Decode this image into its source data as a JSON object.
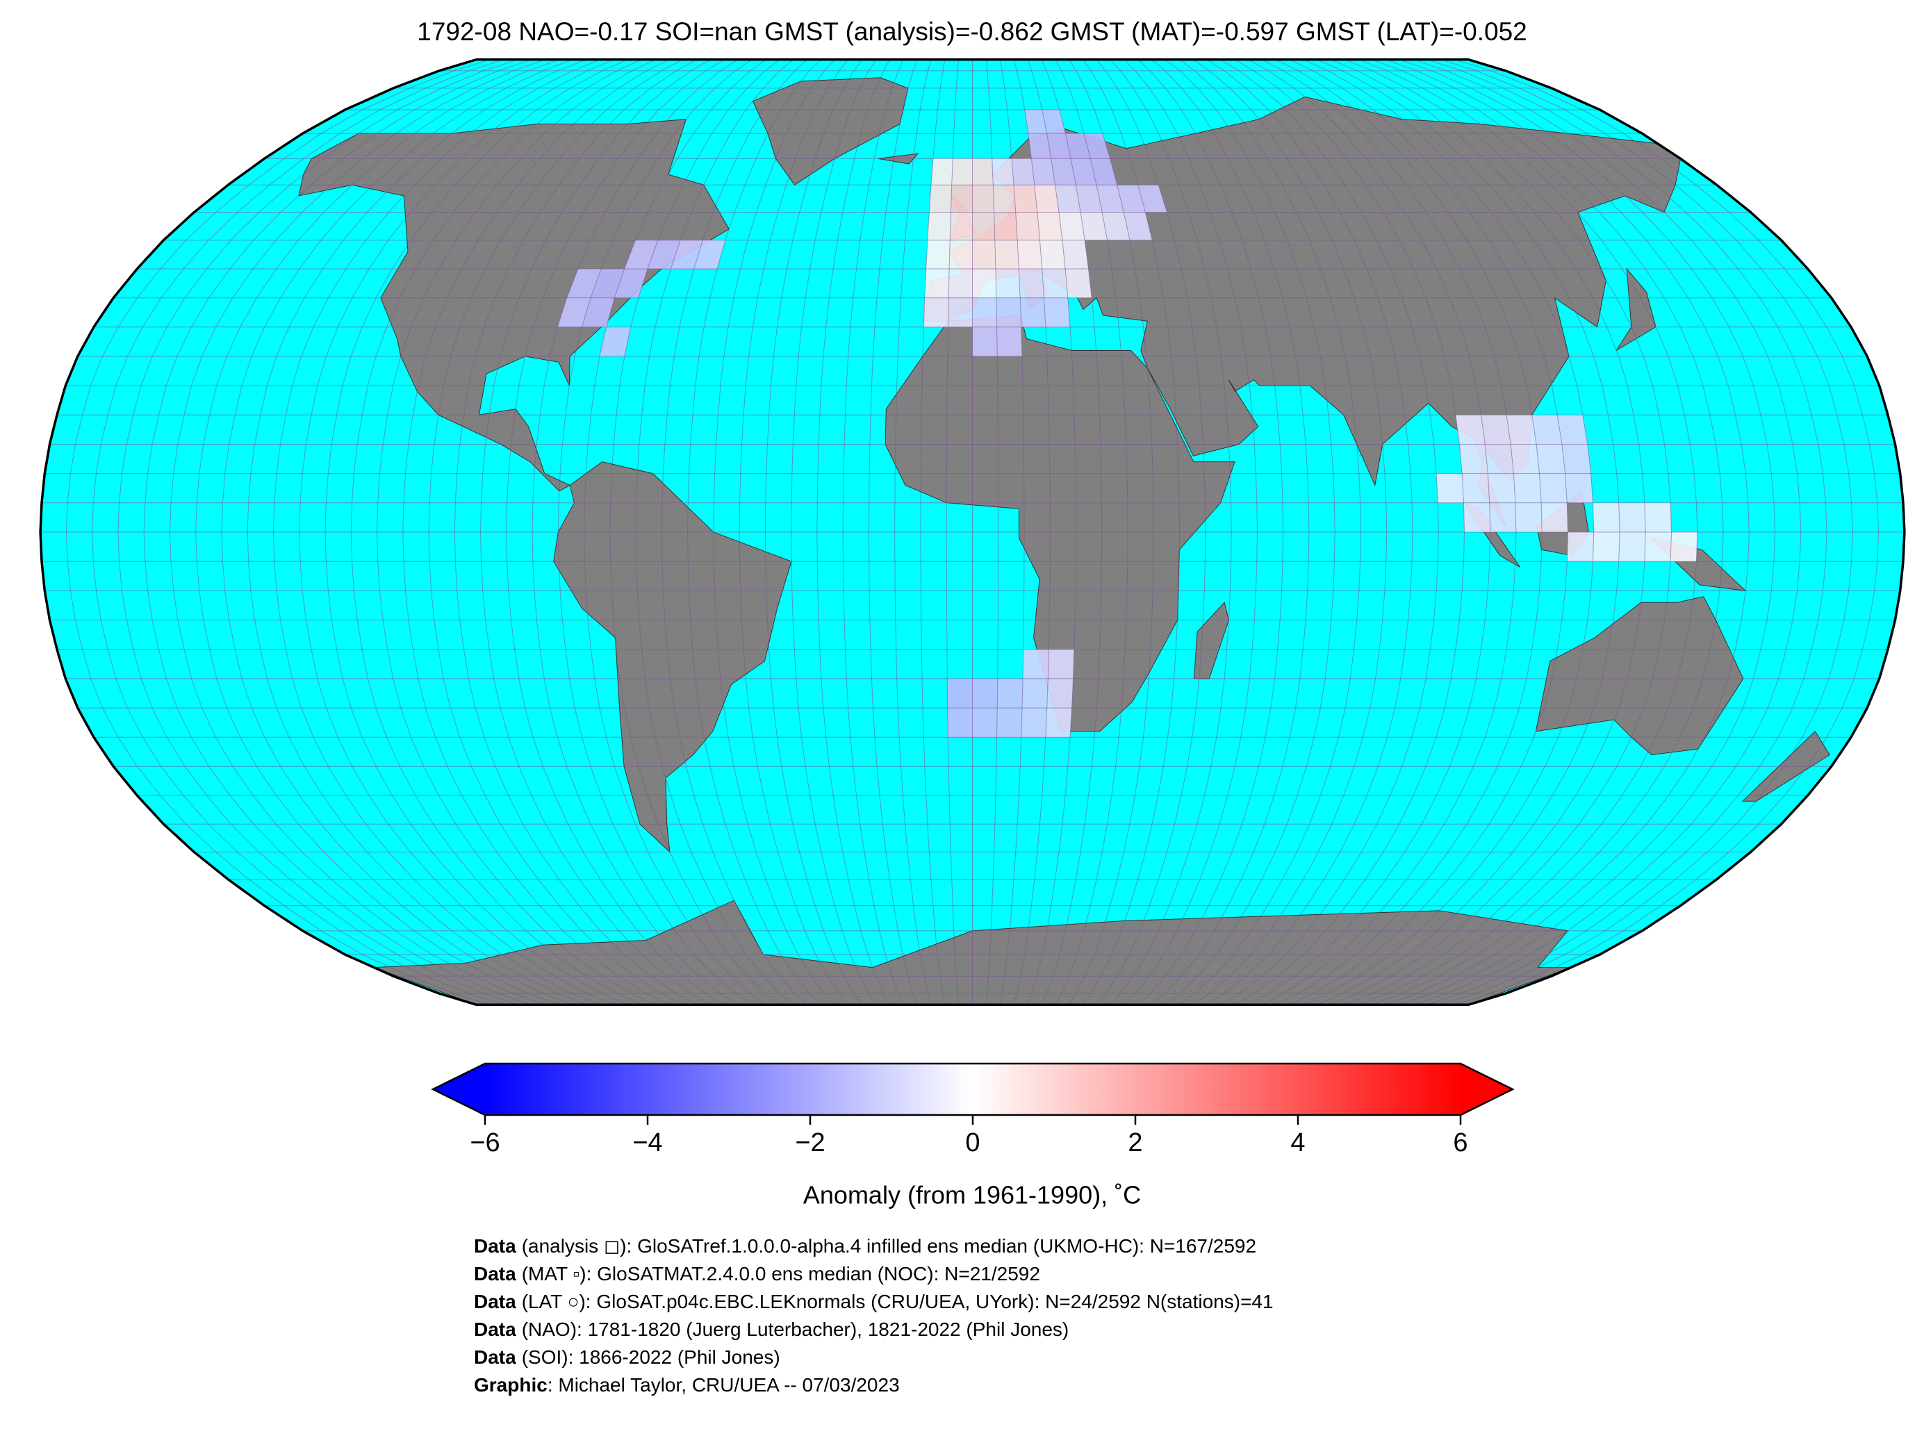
{
  "map": {
    "title": "1792-08 NAO=-0.17 SOI=nan GMST (analysis)=-0.862 GMST (MAT)=-0.597 GMST (LAT)=-0.052",
    "colorbar": {
      "label": "Anomaly (from 1961-1990), ˚C",
      "clim": [
        -6,
        6
      ],
      "colors": [
        "#0000ff",
        "#ffffff",
        "#ff0000"
      ],
      "ticks": [
        {
          "value": -6,
          "label": "−6"
        },
        {
          "value": -4,
          "label": "−4"
        },
        {
          "value": -2,
          "label": "−2"
        },
        0,
        2,
        4,
        6
      ]
    },
    "cells": [
      {
        "lon": -80,
        "lat": 35,
        "anomaly": -1.6
      },
      {
        "lon": -80,
        "lat": 40,
        "anomaly": -1.7
      },
      {
        "lon": -75,
        "lat": 40,
        "anomaly": -1.6
      },
      {
        "lon": -75,
        "lat": 45,
        "anomaly": -1.4
      },
      {
        "lon": -70,
        "lat": 45,
        "anomaly": -1.5
      },
      {
        "lon": -65,
        "lat": 45,
        "anomaly": -1.3
      },
      {
        "lon": -60,
        "lat": 45,
        "anomaly": -1.2
      },
      {
        "lon": -75,
        "lat": 30,
        "anomaly": -1.3
      },
      {
        "lon": -85,
        "lat": 35,
        "anomaly": -1.4
      },
      {
        "lon": -85,
        "lat": 40,
        "anomaly": -1.5
      },
      {
        "lon": -10,
        "lat": 60,
        "anomaly": 0.4
      },
      {
        "lon": -5,
        "lat": 60,
        "anomaly": 0.6
      },
      {
        "lon": 0,
        "lat": 60,
        "anomaly": 0.8
      },
      {
        "lon": -10,
        "lat": 55,
        "anomaly": 0.6
      },
      {
        "lon": -5,
        "lat": 55,
        "anomaly": 1.2
      },
      {
        "lon": 0,
        "lat": 55,
        "anomaly": 1.0
      },
      {
        "lon": 5,
        "lat": 55,
        "anomaly": 0.9
      },
      {
        "lon": 10,
        "lat": 55,
        "anomaly": 0.8
      },
      {
        "lon": 15,
        "lat": 55,
        "anomaly": 0.5
      },
      {
        "lon": -10,
        "lat": 50,
        "anomaly": 0.4
      },
      {
        "lon": -5,
        "lat": 50,
        "anomaly": 0.7
      },
      {
        "lon": 0,
        "lat": 50,
        "anomaly": 1.0
      },
      {
        "lon": 5,
        "lat": 50,
        "anomaly": 1.1
      },
      {
        "lon": 10,
        "lat": 50,
        "anomaly": 0.6
      },
      {
        "lon": 15,
        "lat": 50,
        "anomaly": 0.3
      },
      {
        "lon": 20,
        "lat": 50,
        "anomaly": -0.2
      },
      {
        "lon": 25,
        "lat": 50,
        "anomaly": -0.4
      },
      {
        "lon": 30,
        "lat": 50,
        "anomaly": -0.6
      },
      {
        "lon": -10,
        "lat": 45,
        "anomaly": 0.2
      },
      {
        "lon": -5,
        "lat": 45,
        "anomaly": 0.3
      },
      {
        "lon": 0,
        "lat": 45,
        "anomaly": 0.5
      },
      {
        "lon": 5,
        "lat": 45,
        "anomaly": 0.4
      },
      {
        "lon": 10,
        "lat": 45,
        "anomaly": 0.2
      },
      {
        "lon": 15,
        "lat": 45,
        "anomaly": -0.1
      },
      {
        "lon": 20,
        "lat": 45,
        "anomaly": -0.3
      },
      {
        "lon": -10,
        "lat": 40,
        "anomaly": -0.2
      },
      {
        "lon": -5,
        "lat": 40,
        "anomaly": -0.3
      },
      {
        "lon": 0,
        "lat": 40,
        "anomaly": -0.2
      },
      {
        "lon": 5,
        "lat": 40,
        "anomaly": -0.5
      },
      {
        "lon": 10,
        "lat": 40,
        "anomaly": -0.7
      },
      {
        "lon": 15,
        "lat": 40,
        "anomaly": -0.6
      },
      {
        "lon": 20,
        "lat": 40,
        "anomaly": -0.4
      },
      {
        "lon": -10,
        "lat": 35,
        "anomaly": -0.5
      },
      {
        "lon": -5,
        "lat": 35,
        "anomaly": -0.7
      },
      {
        "lon": 0,
        "lat": 35,
        "anomaly": -1.0
      },
      {
        "lon": 5,
        "lat": 35,
        "anomaly": -1.2
      },
      {
        "lon": 10,
        "lat": 35,
        "anomaly": -1.2
      },
      {
        "lon": 15,
        "lat": 35,
        "anomaly": -1.1
      },
      {
        "lon": 0,
        "lat": 30,
        "anomaly": -1.3
      },
      {
        "lon": 5,
        "lat": 30,
        "anomaly": -1.3
      },
      {
        "lon": 5,
        "lat": 60,
        "anomaly": -0.6
      },
      {
        "lon": 10,
        "lat": 60,
        "anomaly": -1.0
      },
      {
        "lon": 15,
        "lat": 60,
        "anomaly": -1.2
      },
      {
        "lon": 20,
        "lat": 60,
        "anomaly": -1.4
      },
      {
        "lon": 25,
        "lat": 60,
        "anomaly": -1.5
      },
      {
        "lon": 30,
        "lat": 60,
        "anomaly": -1.6
      },
      {
        "lon": 15,
        "lat": 65,
        "anomaly": -1.5
      },
      {
        "lon": 20,
        "lat": 65,
        "anomaly": -1.6
      },
      {
        "lon": 25,
        "lat": 65,
        "anomaly": -1.7
      },
      {
        "lon": 30,
        "lat": 65,
        "anomaly": -1.7
      },
      {
        "lon": 15,
        "lat": 70,
        "anomaly": -1.3
      },
      {
        "lon": 20,
        "lat": 70,
        "anomaly": -1.4
      },
      {
        "lon": 25,
        "lat": 55,
        "anomaly": -1.0
      },
      {
        "lon": 30,
        "lat": 55,
        "anomaly": -1.1
      },
      {
        "lon": 35,
        "lat": 55,
        "anomaly": -1.2
      },
      {
        "lon": 20,
        "lat": 55,
        "anomaly": -0.8
      },
      {
        "lon": 35,
        "lat": 50,
        "anomaly": -0.9
      },
      {
        "lon": 40,
        "lat": 55,
        "anomaly": -1.3
      },
      {
        "lon": -5,
        "lat": -35,
        "anomaly": -1.5
      },
      {
        "lon": 0,
        "lat": -35,
        "anomaly": -1.4
      },
      {
        "lon": 5,
        "lat": -35,
        "anomaly": -1.3
      },
      {
        "lon": 10,
        "lat": -35,
        "anomaly": -1.1
      },
      {
        "lon": 15,
        "lat": -35,
        "anomaly": -0.8
      },
      {
        "lon": -5,
        "lat": -30,
        "anomaly": -1.6
      },
      {
        "lon": 0,
        "lat": -30,
        "anomaly": -1.5
      },
      {
        "lon": 5,
        "lat": -30,
        "anomaly": -1.3
      },
      {
        "lon": 10,
        "lat": -30,
        "anomaly": -1.1
      },
      {
        "lon": 15,
        "lat": -30,
        "anomaly": -0.9
      },
      {
        "lon": 10,
        "lat": -25,
        "anomaly": -1.0
      },
      {
        "lon": 15,
        "lat": -25,
        "anomaly": -0.9
      },
      {
        "lon": 95,
        "lat": 15,
        "anomaly": -0.6
      },
      {
        "lon": 100,
        "lat": 15,
        "anomaly": -0.7
      },
      {
        "lon": 105,
        "lat": 15,
        "anomaly": -0.6
      },
      {
        "lon": 110,
        "lat": 15,
        "anomaly": -0.8
      },
      {
        "lon": 115,
        "lat": 15,
        "anomaly": -0.9
      },
      {
        "lon": 95,
        "lat": 10,
        "anomaly": -0.6
      },
      {
        "lon": 100,
        "lat": 10,
        "anomaly": -0.7
      },
      {
        "lon": 105,
        "lat": 10,
        "anomaly": -0.6
      },
      {
        "lon": 110,
        "lat": 10,
        "anomaly": -0.7
      },
      {
        "lon": 115,
        "lat": 10,
        "anomaly": -0.9
      },
      {
        "lon": 90,
        "lat": 5,
        "anomaly": -0.5
      },
      {
        "lon": 95,
        "lat": 5,
        "anomaly": -0.6
      },
      {
        "lon": 100,
        "lat": 5,
        "anomaly": -0.6
      },
      {
        "lon": 105,
        "lat": 5,
        "anomaly": -0.6
      },
      {
        "lon": 110,
        "lat": 5,
        "anomaly": -0.7
      },
      {
        "lon": 115,
        "lat": 5,
        "anomaly": -0.8
      },
      {
        "lon": 95,
        "lat": 0,
        "anomaly": -0.6
      },
      {
        "lon": 100,
        "lat": 0,
        "anomaly": -0.7
      },
      {
        "lon": 105,
        "lat": 0,
        "anomaly": -0.6
      },
      {
        "lon": 110,
        "lat": 0,
        "anomaly": -0.5
      },
      {
        "lon": 120,
        "lat": 0,
        "anomaly": -0.4
      },
      {
        "lon": 125,
        "lat": 0,
        "anomaly": -0.5
      },
      {
        "lon": 130,
        "lat": 0,
        "anomaly": -0.4
      },
      {
        "lon": 125,
        "lat": -5,
        "anomaly": -0.4
      },
      {
        "lon": 130,
        "lat": -5,
        "anomaly": -0.3
      },
      {
        "lon": 135,
        "lat": -5,
        "anomaly": -0.2
      },
      {
        "lon": 120,
        "lat": -5,
        "anomaly": -0.3
      },
      {
        "lon": 115,
        "lat": -5,
        "anomaly": -0.5
      }
    ],
    "footer": [
      {
        "label": "Data",
        "text": "(analysis ◻): GloSATref.1.0.0.0-alpha.4 infilled ens median (UKMO-HC): N=167/2592"
      },
      {
        "label": "Data",
        "text": "(MAT ▫): GloSATMAT.2.4.0.0 ens median (NOC): N=21/2592"
      },
      {
        "label": "Data",
        "text": "(LAT ○): GloSAT.p04c.EBC.LEKnormals (CRU/UEA, UYork): N=24/2592 N(stations)=41"
      },
      {
        "label": "Data",
        "text": "(NAO): 1781-1820 (Juerg Luterbacher), 1821-2022 (Phil Jones)"
      },
      {
        "label": "Data",
        "text": "(SOI): 1866-2022 (Phil Jones)"
      },
      {
        "label": "Graphic",
        "text": ": Michael Taylor, CRU/UEA -- 07/03/2023"
      }
    ]
  }
}
